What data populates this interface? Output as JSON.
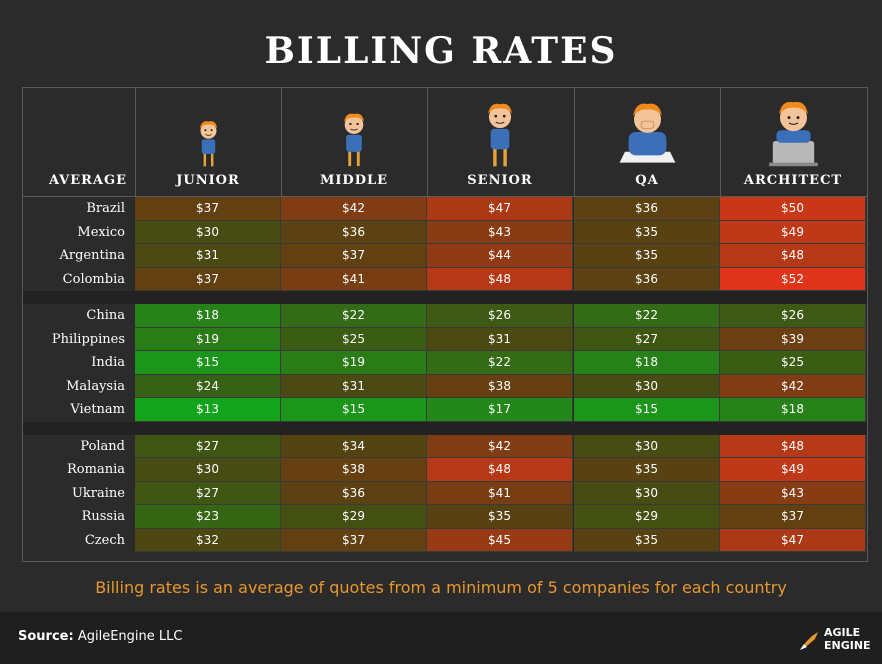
{
  "title": "BILLING RATES",
  "note": "Billing rates is an average of quotes from a minimum of 5 companies for each country",
  "source_label": "Source",
  "source_value": "AgileEngine LLC",
  "logo": {
    "line1": "AGILE",
    "line2": "ENGINE",
    "icon": "rocket-icon"
  },
  "colors": {
    "low": "#12a51c",
    "high": "#e0341a",
    "background": "#2b2b2b",
    "note": "#e8972e"
  },
  "chart_data": {
    "type": "table",
    "row_header": "AVERAGE",
    "columns": [
      "JUNIOR",
      "MIDDLE",
      "SENIOR",
      "QA",
      "ARCHITECT"
    ],
    "groups": [
      {
        "rows": [
          {
            "country": "Brazil",
            "values": [
              "$37",
              "$42",
              "$47",
              "$36",
              "$50"
            ]
          },
          {
            "country": "Mexico",
            "values": [
              "$30",
              "$36",
              "$43",
              "$35",
              "$49"
            ]
          },
          {
            "country": "Argentina",
            "values": [
              "$31",
              "$37",
              "$44",
              "$35",
              "$48"
            ]
          },
          {
            "country": "Colombia",
            "values": [
              "$37",
              "$41",
              "$48",
              "$36",
              "$52"
            ]
          }
        ]
      },
      {
        "rows": [
          {
            "country": "China",
            "values": [
              "$18",
              "$22",
              "$26",
              "$22",
              "$26"
            ]
          },
          {
            "country": "Philippines",
            "values": [
              "$19",
              "$25",
              "$31",
              "$27",
              "$39"
            ]
          },
          {
            "country": "India",
            "values": [
              "$15",
              "$19",
              "$22",
              "$18",
              "$25"
            ]
          },
          {
            "country": "Malaysia",
            "values": [
              "$24",
              "$31",
              "$38",
              "$30",
              "$42"
            ]
          },
          {
            "country": "Vietnam",
            "values": [
              "$13",
              "$15",
              "$17",
              "$15",
              "$18"
            ]
          }
        ]
      },
      {
        "rows": [
          {
            "country": "Poland",
            "values": [
              "$27",
              "$34",
              "$42",
              "$30",
              "$48"
            ]
          },
          {
            "country": "Romania",
            "values": [
              "$30",
              "$38",
              "$48",
              "$35",
              "$49"
            ]
          },
          {
            "country": "Ukraine",
            "values": [
              "$27",
              "$36",
              "$41",
              "$30",
              "$43"
            ]
          },
          {
            "country": "Russia",
            "values": [
              "$23",
              "$29",
              "$35",
              "$29",
              "$37"
            ]
          },
          {
            "country": "Czech",
            "values": [
              "$32",
              "$37",
              "$45",
              "$35",
              "$47"
            ]
          }
        ]
      }
    ]
  }
}
